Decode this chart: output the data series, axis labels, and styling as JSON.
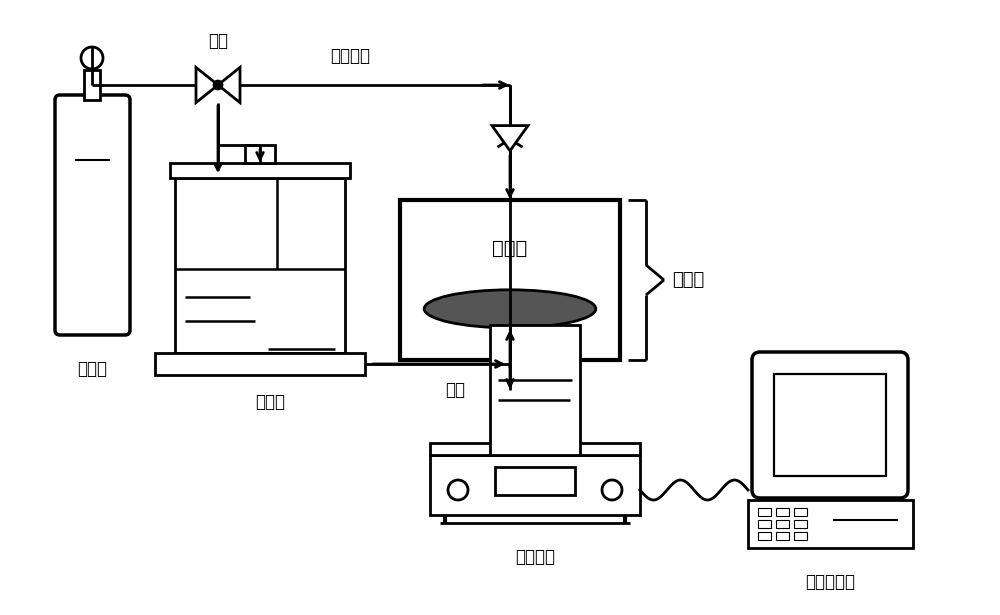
{
  "background_color": "#ffffff",
  "line_color": "#000000",
  "line_width": 2.0,
  "labels": {
    "nitrogen_tank": "氮气瓶",
    "valve": "阀门",
    "filter_line": "过滤管路",
    "ultrafiltration_cup": "超滤杯",
    "membrane_module": "膜组件",
    "ultrafiltration_membrane": "超滤膜",
    "beaker": "烧杯",
    "electronic_balance": "电子天平",
    "flux_monitor": "通量监测器"
  }
}
